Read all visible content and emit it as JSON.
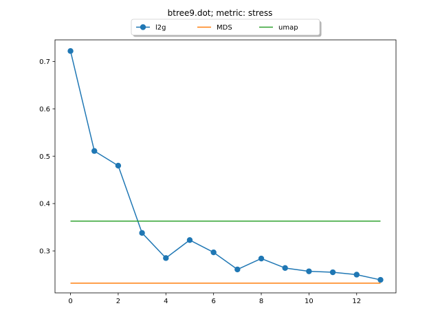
{
  "chart_data": {
    "type": "line",
    "title": "btree9.dot; metric: stress",
    "xlabel": "",
    "ylabel": "",
    "xlim": [
      -0.65,
      13.65
    ],
    "ylim": [
      0.2115,
      0.7455
    ],
    "xticks": [
      0,
      2,
      4,
      6,
      8,
      10,
      12
    ],
    "yticks": [
      0.3,
      0.4,
      0.5,
      0.6,
      0.7
    ],
    "grid": false,
    "legend_position": "top-center",
    "series": [
      {
        "name": "l2g",
        "color": "#1f77b4",
        "marker": "circle",
        "x": [
          0,
          1,
          2,
          3,
          4,
          5,
          6,
          7,
          8,
          9,
          10,
          11,
          12,
          13
        ],
        "y": [
          0.722,
          0.511,
          0.48,
          0.338,
          0.285,
          0.323,
          0.297,
          0.261,
          0.284,
          0.264,
          0.257,
          0.255,
          0.25,
          0.239
        ]
      },
      {
        "name": "MDS",
        "color": "#ff7f0e",
        "marker": "none",
        "x": [
          0,
          13
        ],
        "y": [
          0.232,
          0.232
        ]
      },
      {
        "name": "umap",
        "color": "#2ca02c",
        "marker": "none",
        "x": [
          0,
          13
        ],
        "y": [
          0.363,
          0.363
        ]
      }
    ]
  }
}
